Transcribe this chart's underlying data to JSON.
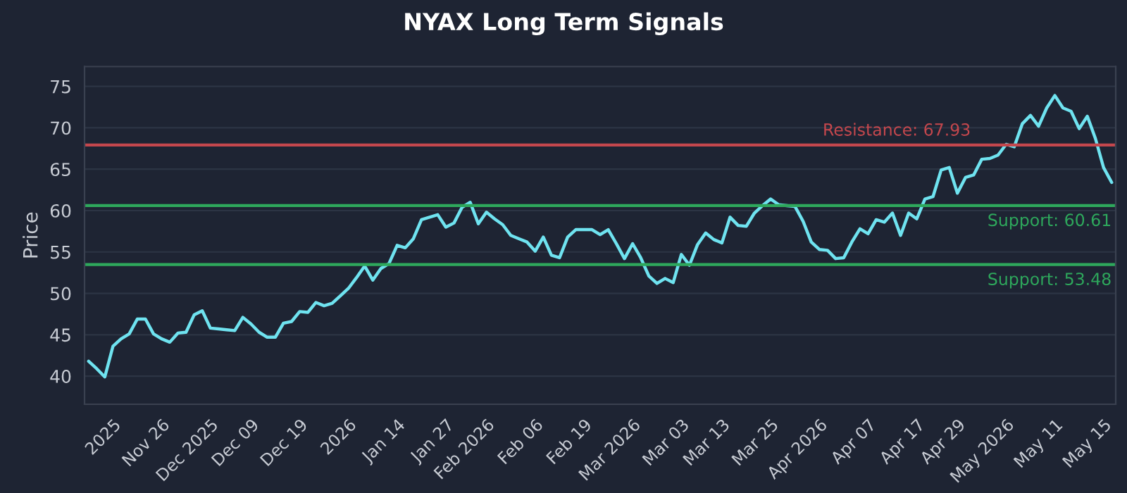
{
  "chart_data": {
    "type": "line",
    "title": "NYAX Long Term Signals",
    "ylabel": "Price",
    "categories": [
      null,
      null,
      null,
      "2025",
      null,
      null,
      null,
      null,
      null,
      "Nov 26",
      null,
      null,
      null,
      null,
      null,
      "Dec 2025",
      null,
      null,
      null,
      null,
      "Dec 09",
      null,
      null,
      null,
      null,
      null,
      "Dec 19",
      null,
      null,
      null,
      null,
      null,
      "2026",
      null,
      null,
      null,
      null,
      null,
      "Jan 14",
      null,
      null,
      null,
      null,
      null,
      "Jan 27",
      null,
      null,
      null,
      null,
      "Feb 2026",
      null,
      null,
      null,
      null,
      null,
      "Feb 06",
      null,
      null,
      null,
      null,
      null,
      "Feb 19",
      null,
      null,
      null,
      null,
      null,
      "Mar 2026",
      null,
      null,
      null,
      null,
      null,
      "Mar 03",
      null,
      null,
      null,
      null,
      "Mar 13",
      null,
      null,
      null,
      null,
      null,
      "Mar 25",
      null,
      null,
      null,
      null,
      null,
      "Apr 2026",
      null,
      null,
      null,
      null,
      null,
      "Apr 07",
      null,
      null,
      null,
      null,
      null,
      "Apr 17",
      null,
      null,
      null,
      null,
      "Apr 29",
      null,
      null,
      null,
      null,
      null,
      "May 2026",
      null,
      null,
      null,
      null,
      null,
      "May 11",
      null,
      null,
      null,
      null,
      null,
      "May 15",
      null
    ],
    "series": [
      {
        "color": "#6fe3f0",
        "values": [
          41.8,
          40.9,
          39.9,
          43.6,
          44.5,
          45.1,
          46.9,
          46.9,
          45.1,
          44.5,
          44.1,
          45.2,
          45.3,
          47.4,
          47.9,
          45.8,
          45.7,
          45.6,
          45.5,
          47.1,
          46.3,
          45.3,
          44.7,
          44.7,
          46.4,
          46.6,
          47.8,
          47.7,
          48.9,
          48.5,
          48.8,
          49.7,
          50.6,
          51.9,
          53.3,
          51.6,
          53.0,
          53.6,
          55.8,
          55.5,
          56.6,
          58.9,
          59.2,
          59.5,
          58.0,
          58.5,
          60.4,
          61.0,
          58.4,
          59.8,
          59.0,
          58.3,
          57.0,
          56.6,
          56.2,
          55.1,
          56.8,
          54.6,
          54.3,
          56.8,
          57.7,
          57.7,
          57.7,
          57.1,
          57.7,
          56.0,
          54.2,
          56.0,
          54.3,
          52.1,
          51.2,
          51.8,
          51.3,
          54.7,
          53.4,
          55.9,
          57.3,
          56.5,
          56.1,
          59.2,
          58.2,
          58.1,
          59.7,
          60.6,
          61.4,
          60.7,
          60.6,
          60.5,
          58.7,
          56.2,
          55.3,
          55.2,
          54.2,
          54.3,
          56.2,
          57.8,
          57.2,
          58.9,
          58.6,
          59.7,
          57.0,
          59.7,
          59.0,
          61.4,
          61.7,
          64.9,
          65.2,
          62.1,
          64.0,
          64.3,
          66.2,
          66.3,
          66.7,
          68.0,
          67.7,
          70.5,
          71.5,
          70.2,
          72.4,
          73.9,
          72.4,
          72.0,
          69.9,
          71.4,
          68.7,
          65.2,
          63.4
        ]
      }
    ],
    "ylim": [
      36.6,
      77.4
    ],
    "yticks": [
      40,
      45,
      50,
      55,
      60,
      65,
      70,
      75
    ],
    "grid": "y",
    "marker": "none",
    "line_style": "solid",
    "ref_lines": [
      {
        "axis": "y",
        "value": 67.93,
        "label": "Resistance: 67.93",
        "color": "#c4474d"
      },
      {
        "axis": "y",
        "value": 60.61,
        "label": "Support: 60.61",
        "color": "#2ea85c"
      },
      {
        "axis": "y",
        "value": 53.48,
        "label": "Support: 53.48",
        "color": "#2ea85c"
      }
    ]
  }
}
